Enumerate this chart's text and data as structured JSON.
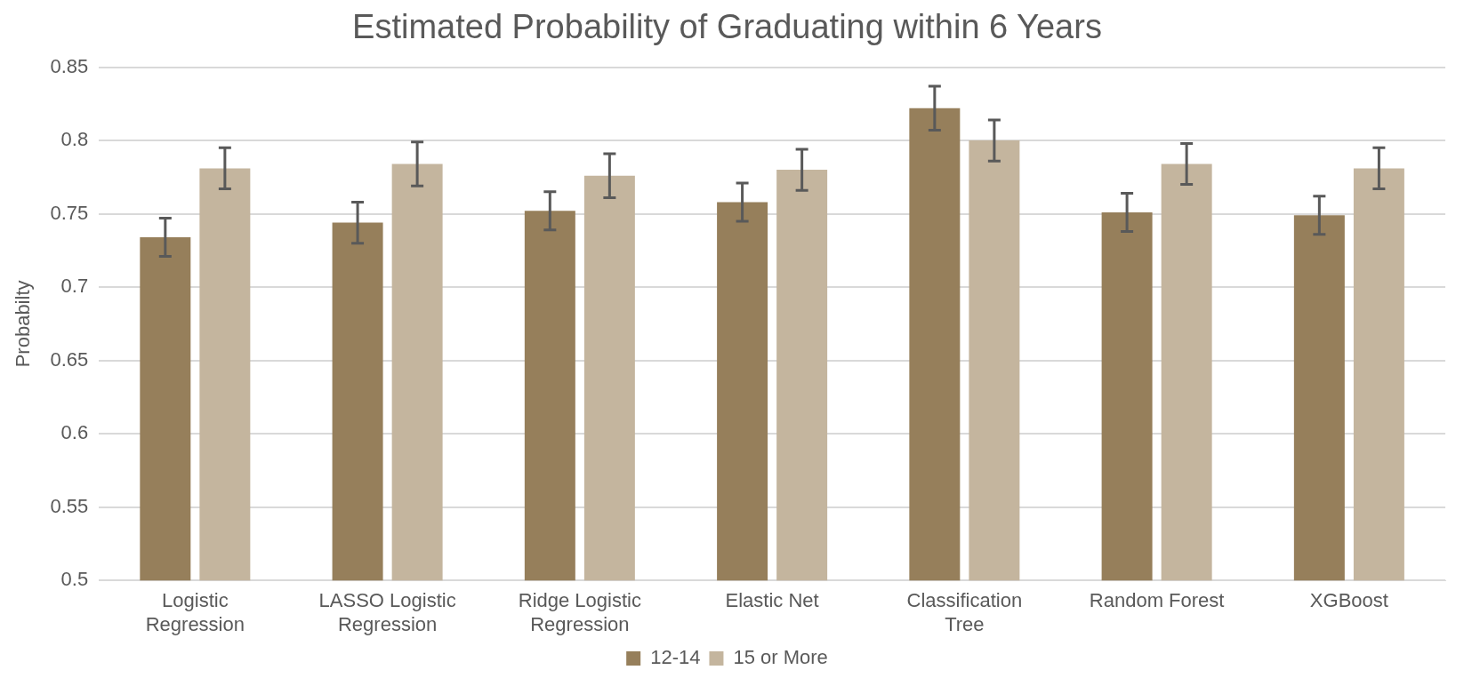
{
  "chart_data": {
    "type": "bar",
    "title": "Estimated Probability of Graduating within 6 Years",
    "ylabel": "Probabilty",
    "categories": [
      "Logistic Regression",
      "LASSO Logistic Regression",
      "Ridge Logistic Regression",
      "Elastic Net",
      "Classification Tree",
      "Random Forest",
      "XGBoost"
    ],
    "series": [
      {
        "name": "12-14",
        "color": "#967f5b",
        "values": [
          0.734,
          0.744,
          0.752,
          0.758,
          0.822,
          0.751,
          0.749
        ],
        "errors": [
          0.013,
          0.014,
          0.013,
          0.013,
          0.015,
          0.013,
          0.013
        ]
      },
      {
        "name": "15 or More",
        "color": "#c4b59e",
        "values": [
          0.781,
          0.784,
          0.776,
          0.78,
          0.8,
          0.784,
          0.781
        ],
        "errors": [
          0.014,
          0.015,
          0.015,
          0.014,
          0.014,
          0.014,
          0.014
        ]
      }
    ],
    "ylim": [
      0.5,
      0.85
    ],
    "yticks": [
      0.5,
      0.55,
      0.6,
      0.65,
      0.7,
      0.75,
      0.8,
      0.85
    ],
    "grid": "y",
    "legend": "bottom"
  }
}
